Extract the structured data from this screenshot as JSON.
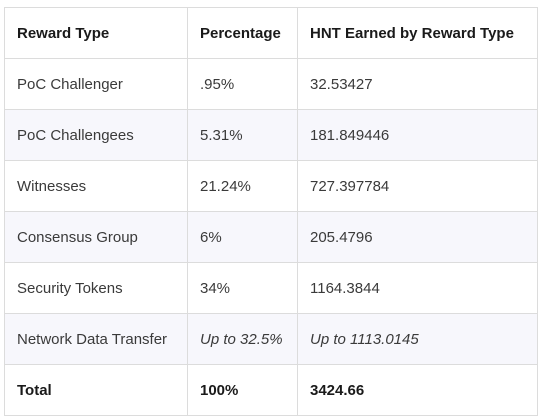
{
  "table": {
    "headers": [
      "Reward Type",
      "Percentage",
      "HNT Earned by Reward Type"
    ],
    "rows": [
      [
        "PoC Challenger",
        ".95%",
        "32.53427"
      ],
      [
        "PoC Challengees",
        "5.31%",
        "181.849446"
      ],
      [
        "Witnesses",
        "21.24%",
        "727.397784"
      ],
      [
        "Consensus Group",
        "6%",
        "205.4796"
      ],
      [
        "Security Tokens",
        "34%",
        "1164.3844"
      ],
      [
        "Network Data Transfer",
        "Up to 32.5%",
        "Up to 1113.0145"
      ]
    ],
    "total": [
      "Total",
      "100%",
      "3424.66"
    ]
  }
}
